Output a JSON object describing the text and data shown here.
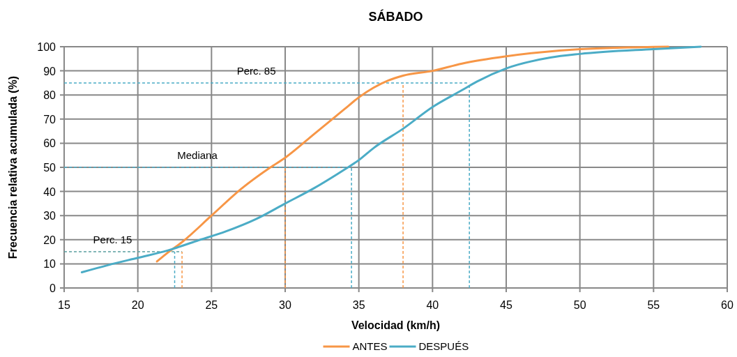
{
  "chart_data": {
    "type": "line",
    "title": "SÁBADO",
    "xlabel": "Velocidad (km/h)",
    "ylabel": "Frecuencia relativa acumulada (%)",
    "xlim": [
      15,
      60
    ],
    "xticks": [
      15,
      20,
      25,
      30,
      35,
      40,
      45,
      50,
      55,
      60
    ],
    "ylim": [
      0,
      100
    ],
    "yticks": [
      0,
      10,
      20,
      30,
      40,
      50,
      60,
      70,
      80,
      90,
      100
    ],
    "grid": true,
    "legend": "bottom",
    "marker": "none",
    "line_style": "solid",
    "series": [
      {
        "name": "ANTES",
        "color": "#f79646",
        "x": [
          21.3,
          22,
          23,
          25,
          27,
          29,
          30,
          32,
          34,
          35,
          36,
          37,
          38,
          40,
          42,
          45,
          50,
          56
        ],
        "values": [
          11,
          14.5,
          19,
          30,
          41,
          50,
          54,
          64,
          74,
          79,
          83,
          86,
          88,
          90,
          93,
          96,
          99,
          100
        ]
      },
      {
        "name": "DESPUÉS",
        "color": "#4bacc6",
        "x": [
          16.2,
          18,
          20,
          22,
          24,
          26,
          28,
          30,
          32,
          34,
          35,
          36,
          38,
          40,
          42,
          43,
          45,
          48,
          50,
          55,
          58.2
        ],
        "values": [
          6.5,
          9.5,
          12.5,
          15.5,
          19.5,
          23.5,
          28.5,
          35,
          41.5,
          49,
          53,
          58,
          66,
          75,
          82,
          85.5,
          91,
          95.5,
          97,
          99,
          100
        ]
      }
    ],
    "ref_lines": [
      {
        "axis": "y",
        "value": 85,
        "label": "Perc. 85",
        "color": "#4bacc6",
        "line_style": "dashed"
      },
      {
        "axis": "y",
        "value": 50,
        "label": "Mediana",
        "color": "#4bacc6",
        "line_style": "dashed"
      },
      {
        "axis": "y",
        "value": 15,
        "label": "Perc. 15",
        "color": "#5a9ea0",
        "line_style": "dashed"
      },
      {
        "axis": "x",
        "value": 23,
        "color": "#f79646",
        "line_style": "dashed"
      },
      {
        "axis": "x",
        "value": 22.5,
        "color": "#4bacc6",
        "line_style": "dashed"
      },
      {
        "axis": "x",
        "value": 30,
        "color": "#f79646",
        "line_style": "dashed"
      },
      {
        "axis": "x",
        "value": 34.5,
        "color": "#4bacc6",
        "line_style": "dashed"
      },
      {
        "axis": "x",
        "value": 38,
        "color": "#f79646",
        "line_style": "dashed"
      },
      {
        "axis": "x",
        "value": 42.5,
        "color": "#4bacc6",
        "line_style": "dashed"
      }
    ]
  }
}
